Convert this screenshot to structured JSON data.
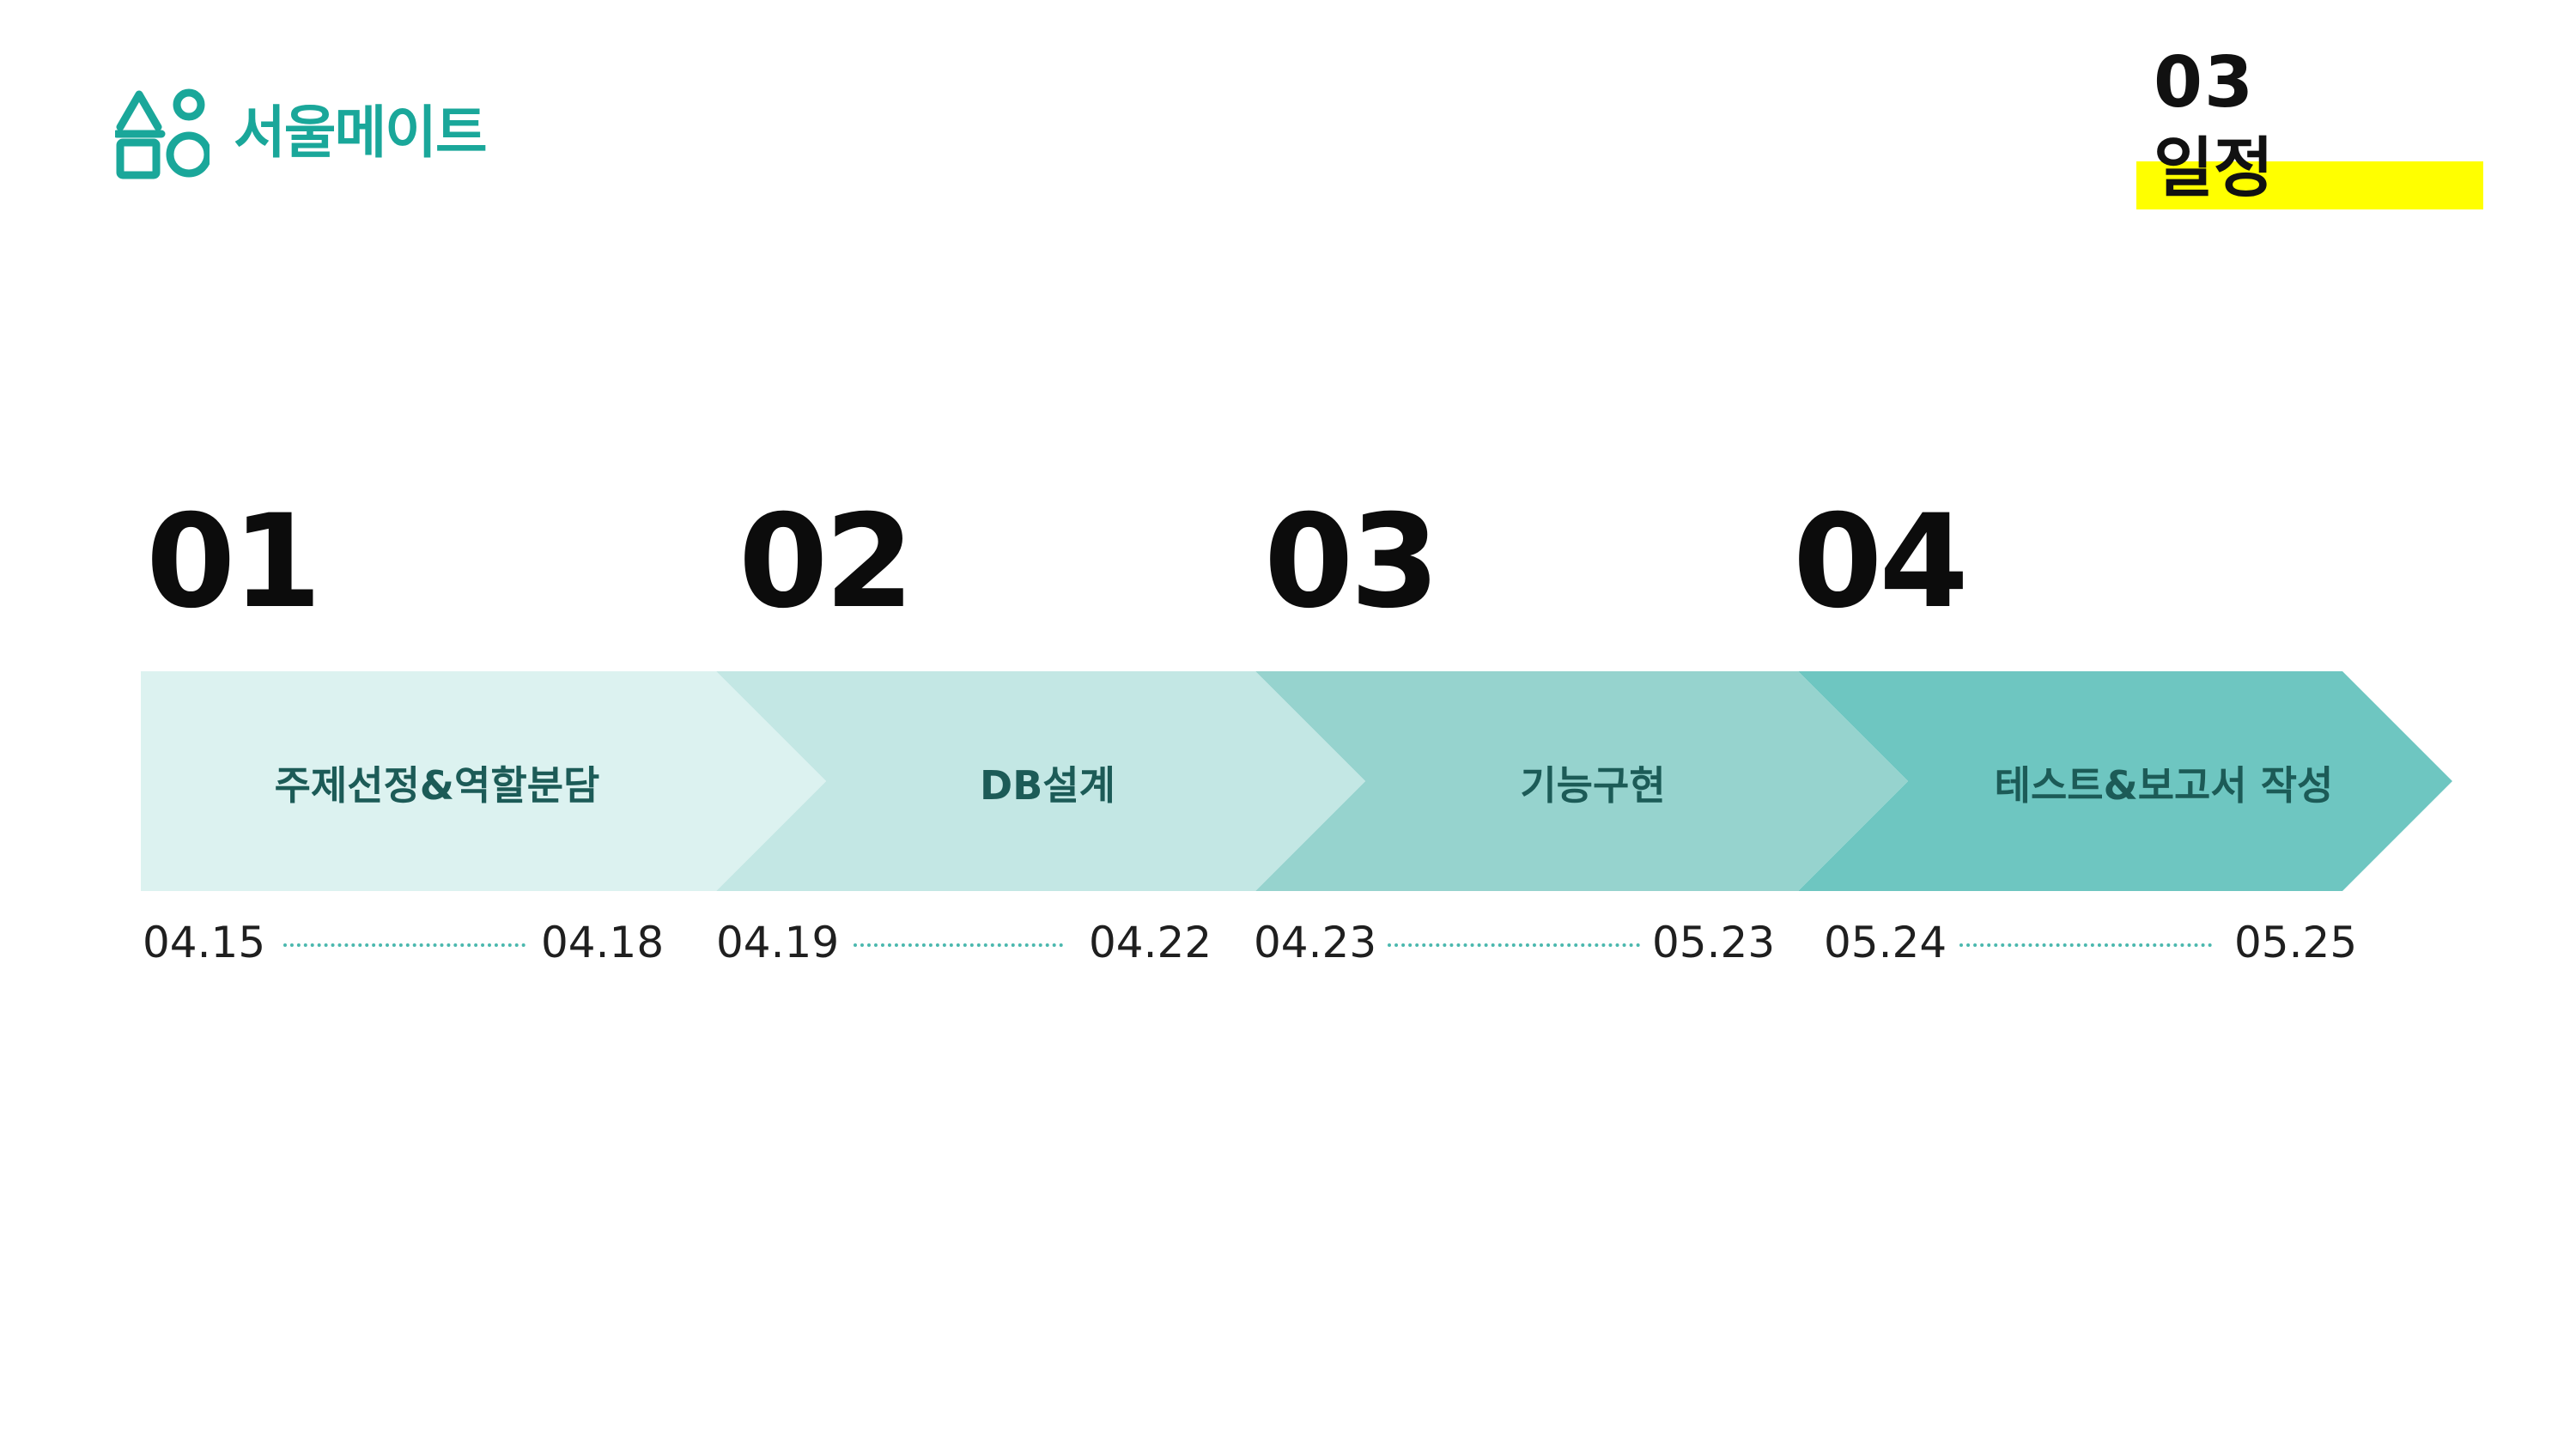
{
  "logo": {
    "text": "서울메이트",
    "icon": "logo-icon",
    "color": "#1aa79a"
  },
  "section": {
    "number": "03",
    "title": "일정",
    "highlight_color": "#ffff00"
  },
  "steps": [
    {
      "number": "01",
      "label": "주제선정&역할분담",
      "start": "04.15",
      "end": "04.18",
      "color": "#dcf2f0"
    },
    {
      "number": "02",
      "label": "DB설계",
      "start": "04.19",
      "end": "04.22",
      "color": "#c3e7e4"
    },
    {
      "number": "03",
      "label": "기능구현",
      "start": "04.23",
      "end": "05.23",
      "color": "#96d3ce"
    },
    {
      "number": "04",
      "label": "테스트&보고서 작성",
      "start": "05.24",
      "end": "05.25",
      "color": "#6ec6c1"
    }
  ]
}
